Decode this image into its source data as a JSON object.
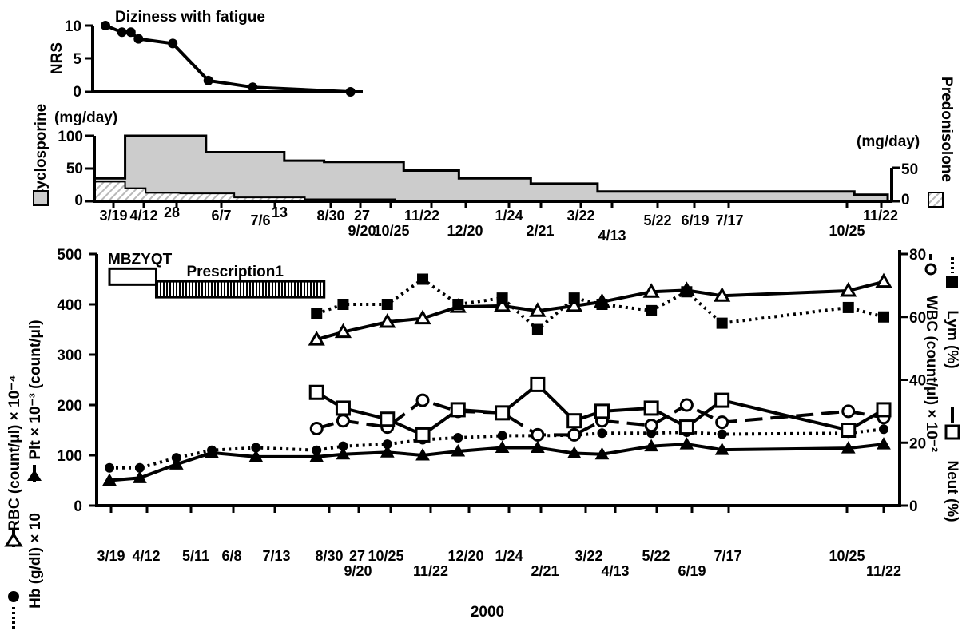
{
  "colors": {
    "ink": "#000000",
    "cyclosporine_fill": "#cccccc",
    "predonisolone_hatch": "#bdbdbd",
    "hollow": "#ffffff",
    "prescription_hatch": "#000000"
  },
  "chart_data": [
    {
      "type": "line",
      "title": "Diziness with fatigue",
      "ylabel": "NRS",
      "ylim": [
        0,
        10
      ],
      "y_ticks": [
        "0",
        "5",
        "10"
      ],
      "series": [
        {
          "name": "Diziness with fatigue",
          "points": [
            [
              "3/19",
              10
            ],
            [
              "4/1",
              9
            ],
            [
              "4/8",
              9
            ],
            [
              "4/14",
              8
            ],
            [
              "5/11",
              7.3
            ],
            [
              "6/8",
              1.7
            ],
            [
              "7/13",
              0.7
            ],
            [
              "9/28",
              0
            ]
          ]
        }
      ]
    },
    {
      "type": "area",
      "left_axis_label": "Cyclosporine",
      "left_unit": "(mg/day)",
      "left_ylim": [
        0,
        100
      ],
      "left_ticks": [
        "0",
        "50",
        "100"
      ],
      "right_axis_label": "Predonisolone",
      "right_unit": "(mg/day)",
      "right_ticks": [
        "0",
        "50"
      ],
      "series": [
        {
          "name": "Cyclosporine",
          "steps": [
            [
              "3/19",
              35
            ],
            [
              "4/12",
              100
            ],
            [
              "6/14",
              75
            ],
            [
              "8/14",
              62
            ],
            [
              "9/14",
              60
            ],
            [
              "11/15",
              47
            ],
            [
              "12/28",
              35
            ],
            [
              "2/22",
              27
            ],
            [
              "4/15",
              15
            ],
            [
              "11/1",
              10
            ]
          ],
          "end": "11/27"
        },
        {
          "name": "Predonisolone",
          "steps": [
            [
              "3/19",
              30
            ],
            [
              "4/12",
              20
            ],
            [
              "4/28",
              13
            ],
            [
              "5/25",
              12
            ],
            [
              "7/6",
              6
            ],
            [
              "8/30",
              3
            ],
            [
              "11/8",
              0
            ]
          ],
          "end": "11/8"
        }
      ],
      "x_ticks": [
        "3/19",
        "4/12",
        "28",
        "6/7",
        "7/6",
        "13",
        "8/30",
        "27",
        "9/20",
        "10/25",
        "11/22",
        "12/20",
        "1/24",
        "2/21",
        "3/22",
        "4/13",
        "5/22",
        "6/19",
        "7/17",
        "10/25",
        "11/22"
      ]
    },
    {
      "type": "line",
      "xlabel": "2000",
      "left_axis": {
        "ylim": [
          0,
          500
        ],
        "ticks": [
          "0",
          "100",
          "200",
          "300",
          "400",
          "500"
        ],
        "labels": [
          "RBC (count/μl) × 10⁻⁴",
          "Plt × 10⁻³ (count/μl)",
          "Hb (g/dl) × 10"
        ]
      },
      "right_axis": {
        "ylim": [
          0,
          80
        ],
        "ticks": [
          "0",
          "20",
          "40",
          "60",
          "80"
        ],
        "labels": [
          "Lym (%)",
          "WBC (count/μl) × 10⁻²",
          "Neut (%)"
        ]
      },
      "x_ticks": [
        "3/19",
        "4/12",
        "5/11",
        "6/8",
        "7/13",
        "8/30",
        "27",
        "9/20",
        "10/25",
        "11/22",
        "12/20",
        "1/24",
        "2/21",
        "3/22",
        "4/13",
        "5/22",
        "6/19",
        "7/17",
        "10/25",
        "11/22"
      ],
      "bars": [
        {
          "label": "MBZYQT",
          "start": "3/19",
          "end": "4/25",
          "level": 455
        },
        {
          "label": "Prescription1",
          "start": "4/25",
          "end": "9/5",
          "level": 430
        }
      ],
      "series": [
        {
          "name": "RBC",
          "axis": "left",
          "x": [
            "8/30",
            "9/20",
            "10/25",
            "11/22",
            "12/20",
            "1/24",
            "2/21",
            "3/22",
            "4/13",
            "5/22",
            "6/19",
            "7/17",
            "10/25",
            "11/22"
          ],
          "values": [
            330,
            345,
            365,
            372,
            395,
            397,
            387,
            397,
            405,
            425,
            428,
            417,
            427,
            445
          ]
        },
        {
          "name": "Plt",
          "axis": "left",
          "x": [
            "3/19",
            "4/12",
            "5/11",
            "6/8",
            "7/13",
            "8/30",
            "9/20",
            "10/25",
            "11/22",
            "12/20",
            "1/24",
            "2/21",
            "3/22",
            "4/13",
            "5/22",
            "6/19",
            "7/17",
            "10/25",
            "11/22"
          ],
          "values": [
            50,
            55,
            82,
            105,
            97,
            97,
            102,
            106,
            100,
            108,
            115,
            115,
            104,
            102,
            118,
            122,
            111,
            114,
            122
          ]
        },
        {
          "name": "Hb",
          "axis": "left",
          "x": [
            "3/19",
            "4/12",
            "5/11",
            "6/8",
            "7/13",
            "8/30",
            "9/20",
            "10/25",
            "11/22",
            "12/20",
            "1/24",
            "2/21",
            "3/22",
            "4/13",
            "5/22",
            "6/19",
            "7/17",
            "10/25",
            "11/22"
          ],
          "values": [
            75,
            75,
            95,
            110,
            115,
            110,
            118,
            122,
            131,
            135,
            139,
            139,
            140,
            144,
            144,
            146,
            142,
            144,
            152
          ]
        },
        {
          "name": "Lym",
          "axis": "right",
          "x": [
            "8/30",
            "9/20",
            "10/25",
            "11/22",
            "12/20",
            "1/24",
            "2/21",
            "3/22",
            "4/13",
            "5/22",
            "6/19",
            "7/17",
            "10/25",
            "11/22"
          ],
          "values": [
            61,
            64,
            64,
            72,
            64,
            66,
            56,
            66,
            64,
            62,
            68,
            58,
            63,
            60
          ]
        },
        {
          "name": "WBC",
          "axis": "right",
          "x": [
            "8/30",
            "9/20",
            "10/25",
            "11/22",
            "12/20",
            "1/24",
            "2/21",
            "3/22",
            "4/13",
            "5/22",
            "6/19",
            "7/17",
            "10/25",
            "11/22"
          ],
          "values": [
            24.5,
            27,
            25,
            33.5,
            30,
            29.5,
            22.5,
            22.5,
            27,
            25.5,
            32,
            26.5,
            30,
            28
          ]
        },
        {
          "name": "Neut",
          "axis": "right",
          "x": [
            "8/30",
            "9/20",
            "10/25",
            "11/22",
            "12/20",
            "1/24",
            "2/21",
            "3/22",
            "4/13",
            "5/22",
            "6/19",
            "7/17",
            "10/25",
            "11/22"
          ],
          "values": [
            36,
            31,
            27.5,
            22.5,
            30.5,
            29.5,
            38.5,
            27,
            30,
            31,
            25,
            33.5,
            24,
            30.5
          ]
        }
      ]
    }
  ]
}
